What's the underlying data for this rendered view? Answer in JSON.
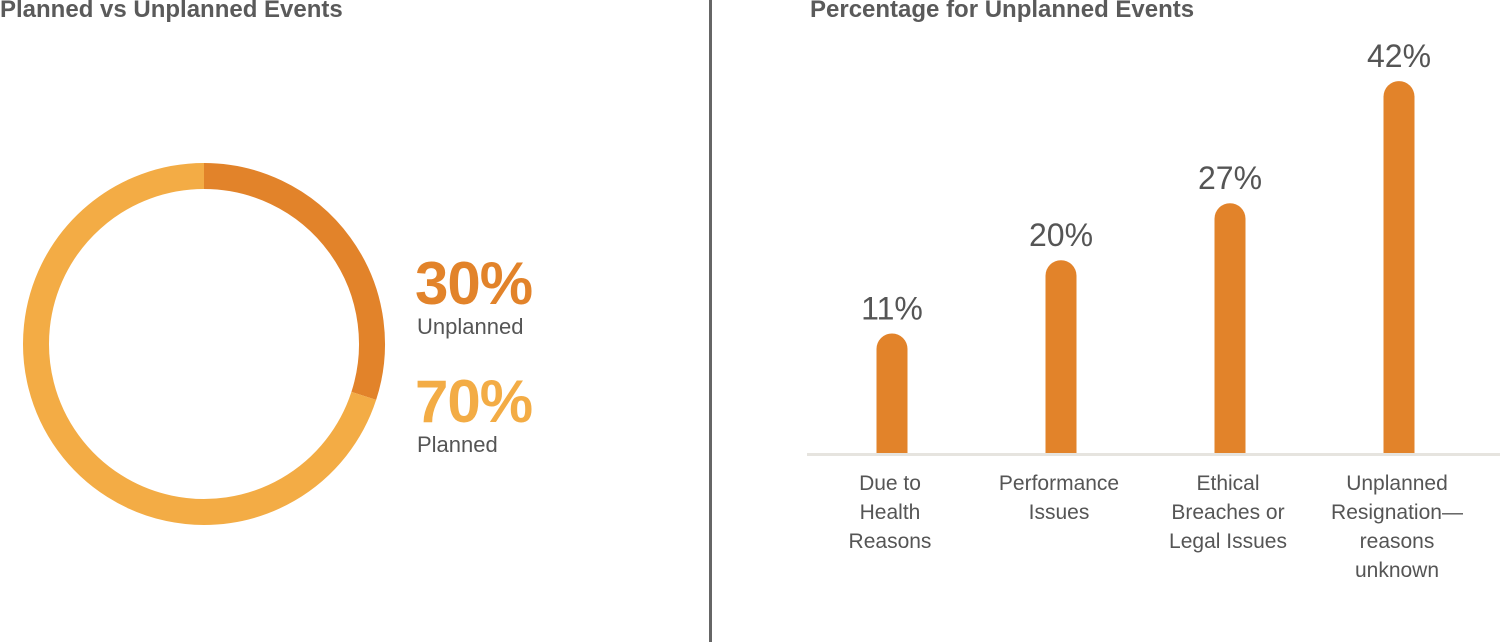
{
  "chart_data": [
    {
      "type": "pie",
      "title": "Planned vs Unplanned Events",
      "slices": [
        {
          "name": "Unplanned",
          "value": 30,
          "label": "30%",
          "color": "#E2832A"
        },
        {
          "name": "Planned",
          "value": 70,
          "label": "70%",
          "color": "#F3AC45"
        }
      ],
      "donut": true
    },
    {
      "type": "bar",
      "title": "Percentage for Unplanned Events",
      "categories": [
        [
          "Due to",
          "Health",
          "Reasons"
        ],
        [
          "Performance",
          "Issues"
        ],
        [
          "Ethical",
          "Breaches or",
          "Legal Issues"
        ],
        [
          "Unplanned",
          "Resignation—",
          "reasons",
          "unknown"
        ]
      ],
      "values": [
        11,
        20,
        27,
        42
      ],
      "data_labels": [
        "11%",
        "20%",
        "27%",
        "42%"
      ],
      "color": "#E2832A",
      "grid": false
    }
  ]
}
